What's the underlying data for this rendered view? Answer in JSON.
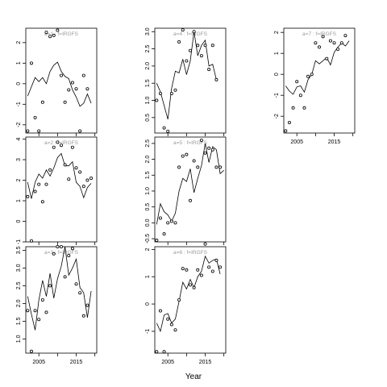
{
  "chart_data": {
    "type": "line",
    "xlabel": "Year",
    "ylabel": "",
    "x": [
      2002,
      2003,
      2004,
      2005,
      2006,
      2007,
      2008,
      2009,
      2010,
      2011,
      2012,
      2013,
      2014,
      2015,
      2016,
      2017,
      2018,
      2019,
      2020
    ],
    "x_ticks": [
      2005,
      2015
    ],
    "panels": [
      {
        "id": "a1",
        "title": "a=1 : f=IRGFS",
        "ylim": [
          -2.4,
          2.7
        ],
        "yticks": [
          -2,
          -1,
          0,
          1,
          2
        ],
        "fitted": [
          -0.6,
          -0.15,
          0.3,
          0.1,
          0.3,
          0.0,
          0.6,
          0.9,
          1.05,
          0.6,
          0.35,
          0.25,
          -0.3,
          -0.65,
          -1.1,
          -0.95,
          -0.5,
          -0.95
        ],
        "observed": [
          -2.3,
          1.0,
          -1.65,
          -2.3,
          -0.9,
          2.5,
          2.3,
          2.35,
          2.6,
          0.4,
          -0.9,
          -0.3,
          0.05,
          -0.25,
          -2.3,
          0.4,
          -0.25
        ]
      },
      {
        "id": "a2",
        "title": "a=2 : f=IRGFS",
        "ylim": [
          -1.0,
          4.1
        ],
        "yticks": [
          -1,
          0,
          1,
          2,
          3,
          4
        ],
        "fitted": [
          1.9,
          1.1,
          1.9,
          2.3,
          2.1,
          2.5,
          2.2,
          2.6,
          3.1,
          3.3,
          2.7,
          2.7,
          2.9,
          1.9,
          1.7,
          1.15,
          1.65,
          1.85
        ],
        "observed": [
          1.2,
          -0.95,
          1.45,
          1.8,
          0.95,
          1.8,
          2.5,
          3.6,
          3.85,
          3.7,
          2.75,
          2.05,
          3.6,
          2.6,
          2.4,
          1.7,
          2.0,
          2.1
        ]
      },
      {
        "id": "a3",
        "title": "a=3 : f=IRGFS",
        "ylim": [
          0.6,
          3.6
        ],
        "yticks": [
          1.0,
          1.5,
          2.0,
          2.5,
          3.0,
          3.5
        ],
        "fitted": [
          2.2,
          1.7,
          1.25,
          2.1,
          2.65,
          2.2,
          2.85,
          2.15,
          2.7,
          3.05,
          3.6,
          2.8,
          3.0,
          3.25,
          2.45,
          2.3,
          1.6,
          2.35
        ],
        "observed": [
          1.8,
          0.65,
          1.8,
          1.55,
          2.1,
          1.75,
          2.5,
          3.4,
          3.6,
          3.6,
          2.75,
          3.35,
          3.55,
          2.55,
          2.3,
          1.65,
          1.95
        ]
      },
      {
        "id": "a4",
        "title": "a=4 : f=IRGFS",
        "ylim": [
          0.05,
          3.1
        ],
        "yticks": [
          0.5,
          1.0,
          1.5,
          2.0,
          2.5,
          3.0
        ],
        "fitted": [
          1.5,
          1.25,
          0.85,
          0.45,
          1.35,
          1.85,
          1.8,
          2.2,
          1.75,
          2.15,
          3.0,
          2.3,
          2.6,
          2.75,
          2.0,
          2.05,
          1.6
        ],
        "observed": [
          1.0,
          1.2,
          0.2,
          0.1,
          1.2,
          1.3,
          2.7,
          3.05,
          2.15,
          2.45,
          3.0,
          2.6,
          2.3,
          2.6,
          1.9,
          2.6,
          1.6
        ]
      },
      {
        "id": "a5",
        "title": "a=5 : f=IRGFS",
        "ylim": [
          -0.6,
          2.7
        ],
        "yticks": [
          -0.5,
          0.0,
          0.5,
          1.0,
          1.5,
          2.0,
          2.5
        ],
        "fitted": [
          -0.05,
          0.6,
          0.35,
          0.25,
          0.05,
          0.3,
          1.0,
          1.4,
          1.3,
          1.7,
          0.95,
          1.4,
          1.8,
          2.5,
          1.9,
          2.4,
          2.3,
          1.55,
          1.65
        ],
        "observed": [
          -0.55,
          0.15,
          -0.35,
          0.0,
          0.05,
          0.0,
          1.75,
          2.1,
          2.15,
          0.7,
          1.95,
          1.75,
          2.6,
          2.2,
          2.35,
          2.3,
          1.75,
          1.75
        ]
      },
      {
        "id": "a6",
        "title": "a=6 : f=IRGFS",
        "ylim": [
          -1.8,
          2.1
        ],
        "yticks": [
          -1,
          0,
          1,
          2
        ],
        "fitted": [
          -0.7,
          -1.0,
          -0.4,
          -0.35,
          -0.7,
          -0.55,
          0.1,
          0.8,
          0.55,
          0.9,
          0.6,
          1.0,
          1.2,
          1.75,
          1.5,
          1.6,
          1.65,
          1.1
        ],
        "observed": [
          -1.75,
          -0.25,
          -1.75,
          -0.55,
          -0.75,
          -0.95,
          0.15,
          1.3,
          1.25,
          0.7,
          0.6,
          1.25,
          1.05,
          2.2,
          1.35,
          1.2,
          1.6,
          1.35
        ]
      },
      {
        "id": "a7",
        "title": "a=7 : f=IRGFS",
        "ylim": [
          -2.8,
          2.2
        ],
        "yticks": [
          -2,
          -1,
          0,
          1,
          2
        ],
        "fitted": [
          -0.55,
          -0.8,
          -0.95,
          -0.6,
          -0.55,
          -0.85,
          -0.25,
          0.0,
          0.65,
          0.5,
          0.65,
          0.8,
          0.45,
          1.05,
          1.3,
          1.5,
          1.35,
          1.6
        ],
        "observed": [
          -2.7,
          -2.3,
          -1.6,
          -0.35,
          -1.0,
          -1.6,
          -0.1,
          0.0,
          1.5,
          1.3,
          1.8,
          0.75,
          1.6,
          1.5,
          1.2,
          1.5,
          1.85
        ]
      }
    ]
  }
}
